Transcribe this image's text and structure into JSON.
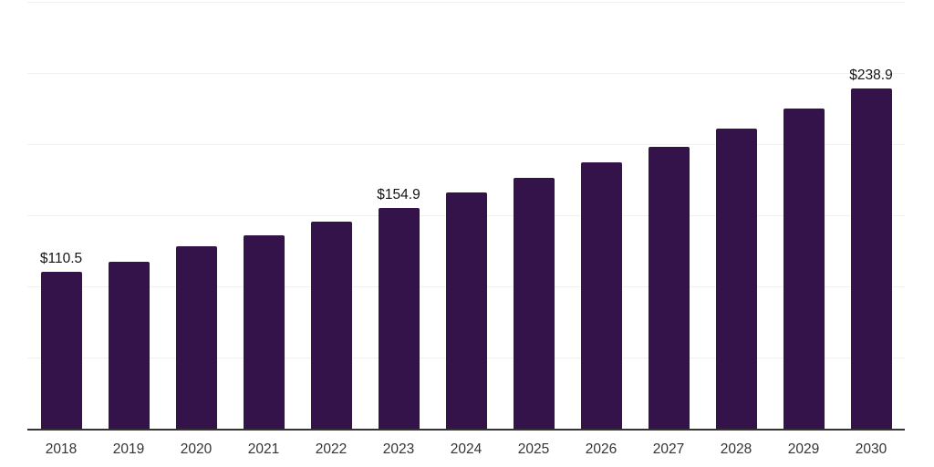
{
  "chart_data": {
    "type": "bar",
    "title": "",
    "xlabel": "",
    "ylabel": "",
    "categories": [
      "2018",
      "2019",
      "2020",
      "2021",
      "2022",
      "2023",
      "2024",
      "2025",
      "2026",
      "2027",
      "2028",
      "2029",
      "2030"
    ],
    "values": [
      110.5,
      117.5,
      128.4,
      135.9,
      145.7,
      154.9,
      166.2,
      176.0,
      186.9,
      198.1,
      211.0,
      225.1,
      238.9
    ],
    "value_labels": [
      "$110.5",
      null,
      null,
      null,
      null,
      "$154.9",
      null,
      null,
      null,
      null,
      null,
      null,
      "$238.9"
    ],
    "ylim": [
      0,
      300
    ],
    "grid_step": 50,
    "grid": true,
    "legend": false,
    "colors": {
      "bar": "#34124a",
      "gridline": "#f0f0f0",
      "axis_line": "#333333",
      "value_label_text": "#141414",
      "tick_label_text": "#333333",
      "background": "#ffffff"
    }
  }
}
